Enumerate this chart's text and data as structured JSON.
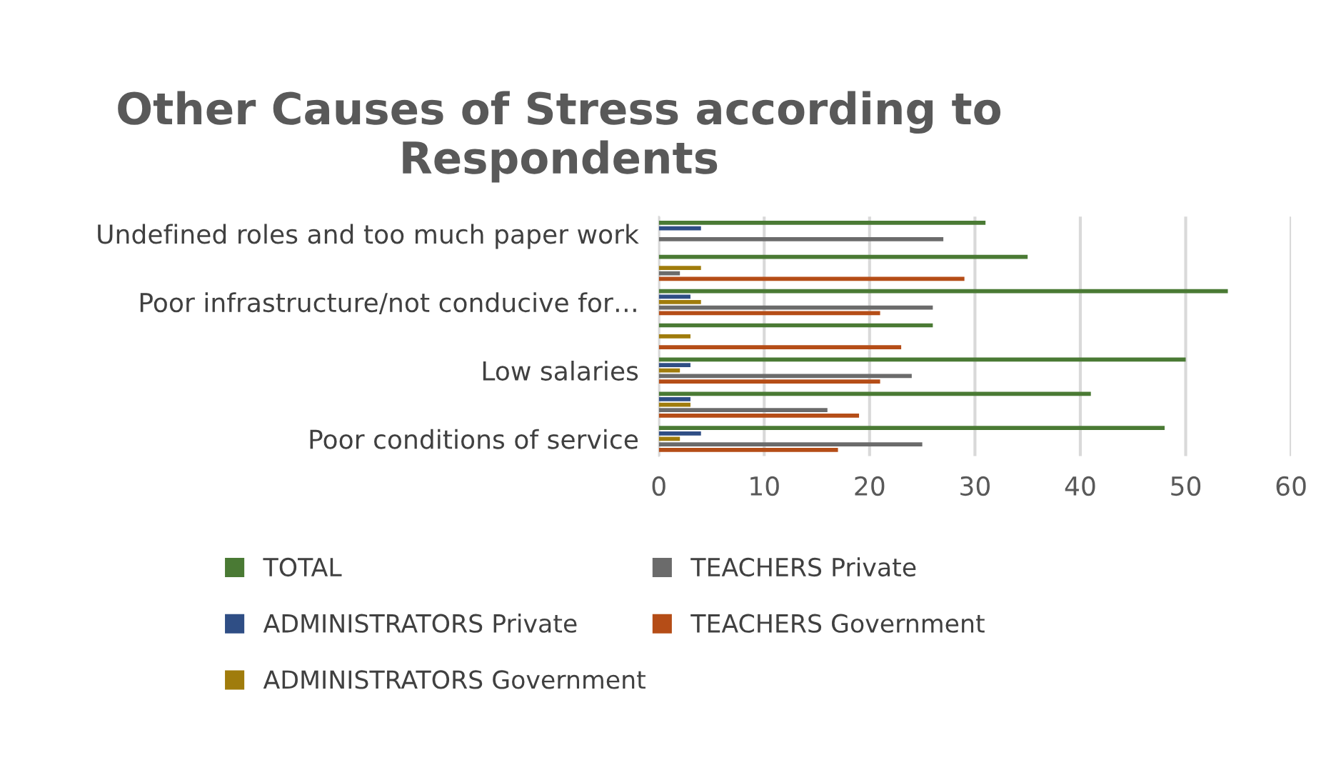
{
  "chart_data": {
    "type": "bar",
    "orientation": "horizontal",
    "title": "Other Causes of Stress according to Respondents",
    "categories": [
      "Undefined roles and too much paper work",
      null,
      "Poor infrastructure/not conducive for…",
      null,
      "Low salaries",
      null,
      "Poor conditions of service"
    ],
    "series": [
      {
        "name": "TOTAL",
        "color": "#4a7a34",
        "values": [
          31,
          35,
          54,
          26,
          50,
          41,
          48
        ]
      },
      {
        "name": "ADMINISTRATORS Private",
        "color": "#2f4e85",
        "values": [
          4,
          null,
          3,
          null,
          3,
          3,
          4
        ]
      },
      {
        "name": "ADMINISTRATORS Government",
        "color": "#a07c0c",
        "values": [
          null,
          4,
          4,
          3,
          2,
          3,
          2
        ]
      },
      {
        "name": "TEACHERS Private",
        "color": "#6b6b6b",
        "values": [
          27,
          2,
          26,
          null,
          24,
          16,
          25
        ]
      },
      {
        "name": "TEACHERS Government",
        "color": "#b54d17",
        "values": [
          null,
          29,
          21,
          23,
          21,
          19,
          17
        ]
      }
    ],
    "xlim": [
      0,
      60
    ],
    "xticks": [
      0,
      10,
      20,
      30,
      40,
      50,
      60
    ],
    "grid": "x",
    "legend": "bottom"
  }
}
